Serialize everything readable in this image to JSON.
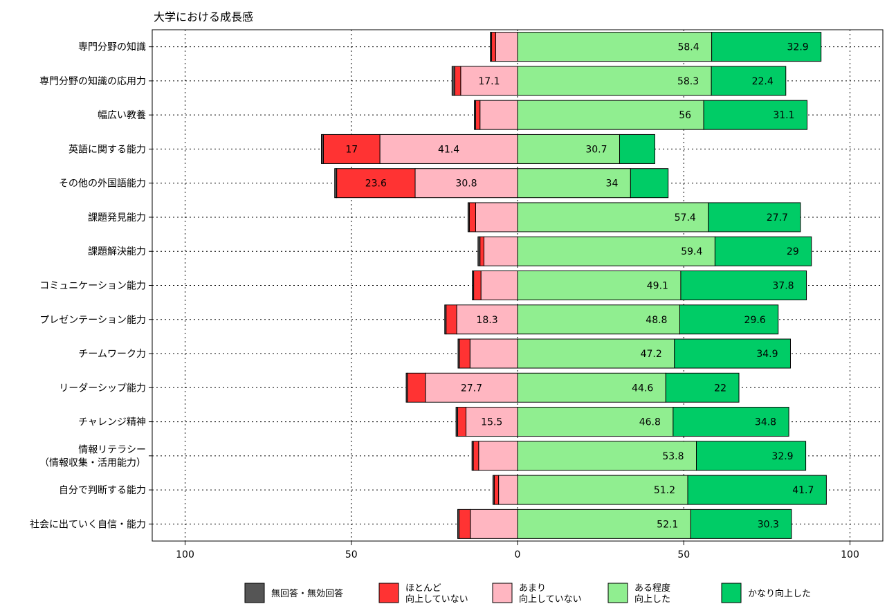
{
  "chart_data": {
    "type": "bar",
    "orientation": "horizontal",
    "stacking": "diverging",
    "title": "大学における成長感",
    "xlabel": "",
    "ylabel": "",
    "xlim": [
      -100,
      100
    ],
    "x_ticks": [
      -100,
      -50,
      0,
      50,
      100
    ],
    "x_tick_labels": [
      "100",
      "50",
      "0",
      "50",
      "100"
    ],
    "grid": true,
    "legend_position": "bottom",
    "categories": [
      "専門分野の知識",
      "専門分野の知識の応用力",
      "幅広い教養",
      "英語に関する能力",
      "その他の外国語能力",
      "課題発見能力",
      "課題解決能力",
      "コミュニケーション能力",
      "プレゼンテーション能力",
      "チームワーク力",
      "リーダーシップ能力",
      "チャレンジ精神",
      "情報リテラシー\n（情報収集・活用能力）",
      "自分で判断する能力",
      "社会に出ていく自信・能力"
    ],
    "series": [
      {
        "name": "無回答・無効回答",
        "color": "#555555",
        "side": "negative",
        "values": [
          0.4,
          0.8,
          0.4,
          0.6,
          0.6,
          0.4,
          0.6,
          0.4,
          0.4,
          0.4,
          0.4,
          0.5,
          0.4,
          0.4,
          0.4
        ]
      },
      {
        "name": "ほとんど\n向上していない",
        "color": "#ff3333",
        "side": "negative",
        "values": [
          1.2,
          1.8,
          1.3,
          17,
          23.6,
          1.9,
          1.2,
          2.2,
          3.2,
          3.2,
          5.4,
          2.5,
          1.6,
          1.3,
          3.4
        ]
      },
      {
        "name": "あまり\n向上していない",
        "color": "#ffb6c1",
        "side": "negative",
        "values": [
          6.6,
          17.1,
          11.3,
          41.4,
          30.8,
          12.6,
          10.1,
          11.0,
          18.3,
          14.3,
          27.7,
          15.5,
          11.7,
          5.7,
          14.2
        ]
      },
      {
        "name": "ある程度\n向上した",
        "color": "#90ee90",
        "side": "positive",
        "values": [
          58.4,
          58.3,
          56,
          30.7,
          34,
          57.4,
          59.4,
          49.1,
          48.8,
          47.2,
          44.6,
          46.8,
          53.8,
          51.2,
          52.1
        ]
      },
      {
        "name": "かなり向上した",
        "color": "#00cc66",
        "side": "positive",
        "values": [
          32.9,
          22.4,
          31.1,
          10.6,
          11.3,
          27.7,
          29,
          37.8,
          29.6,
          34.9,
          22,
          34.8,
          32.9,
          41.7,
          30.3
        ]
      }
    ],
    "data_labels": [
      [
        "",
        "",
        "",
        "58.4",
        "32.9"
      ],
      [
        "",
        "",
        "17.1",
        "58.3",
        "22.4"
      ],
      [
        "",
        "",
        "",
        "56",
        "31.1"
      ],
      [
        "",
        "17",
        "41.4",
        "30.7",
        ""
      ],
      [
        "",
        "23.6",
        "30.8",
        "34",
        ""
      ],
      [
        "",
        "",
        "",
        "57.4",
        "27.7"
      ],
      [
        "",
        "",
        "",
        "59.4",
        "29"
      ],
      [
        "",
        "",
        "",
        "49.1",
        "37.8"
      ],
      [
        "",
        "",
        "18.3",
        "48.8",
        "29.6"
      ],
      [
        "",
        "",
        "",
        "47.2",
        "34.9"
      ],
      [
        "",
        "",
        "27.7",
        "44.6",
        "22"
      ],
      [
        "",
        "",
        "15.5",
        "46.8",
        "34.8"
      ],
      [
        "",
        "",
        "",
        "53.8",
        "32.9"
      ],
      [
        "",
        "",
        "",
        "51.2",
        "41.7"
      ],
      [
        "",
        "",
        "",
        "52.1",
        "30.3"
      ]
    ]
  }
}
